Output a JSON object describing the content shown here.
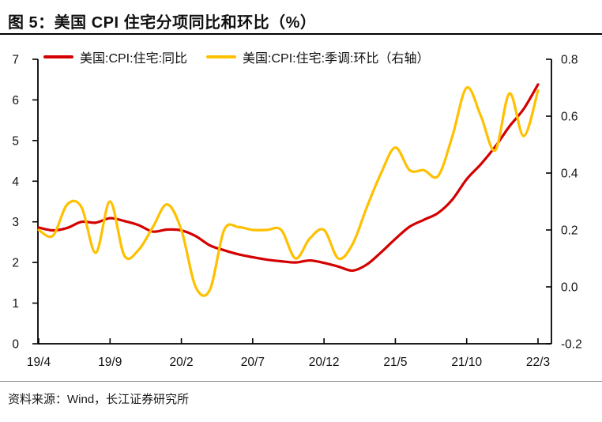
{
  "title": "图 5：美国 CPI 住宅分项同比和环比（%）",
  "source": "资料来源：Wind，长江证券研究所",
  "colors": {
    "yoy_line": "#d40000",
    "mom_line": "#ffc000",
    "axis": "#000000",
    "title_rule": "#000000",
    "footer_rule": "#8a8a8a"
  },
  "legend": [
    {
      "label": "美国:CPI:住宅:同比",
      "color": "#d40000"
    },
    {
      "label": "美国:CPI:住宅:季调:环比（右轴）",
      "color": "#ffc000"
    }
  ],
  "chart_data": {
    "type": "line",
    "title": "图 5：美国 CPI 住宅分项同比和环比（%）",
    "grid": false,
    "legend_position": "top",
    "x": [
      "19/4",
      "19/5",
      "19/6",
      "19/7",
      "19/8",
      "19/9",
      "19/10",
      "19/11",
      "19/12",
      "20/1",
      "20/2",
      "20/3",
      "20/4",
      "20/5",
      "20/6",
      "20/7",
      "20/8",
      "20/9",
      "20/10",
      "20/11",
      "20/12",
      "21/1",
      "21/2",
      "21/3",
      "21/4",
      "21/5",
      "21/6",
      "21/7",
      "21/8",
      "21/9",
      "21/10",
      "21/11",
      "21/12",
      "22/1",
      "22/2",
      "22/3"
    ],
    "x_axis": {
      "tick_indices": [
        0,
        5,
        10,
        15,
        20,
        25,
        30,
        35
      ],
      "tick_labels": [
        "19/4",
        "19/9",
        "20/2",
        "20/7",
        "20/12",
        "21/5",
        "21/10",
        "22/3"
      ]
    },
    "left_axis": {
      "min": 0,
      "max": 7,
      "tick_values": [
        7,
        6,
        5,
        4,
        3,
        2,
        1,
        0
      ],
      "tick_labels": [
        "7",
        "6",
        "5",
        "4",
        "3",
        "2",
        "1",
        "0"
      ]
    },
    "right_axis": {
      "min": -0.2,
      "max": 0.8,
      "tick_values": [
        0.8,
        0.6,
        0.4,
        0.2,
        0.0,
        -0.2
      ],
      "tick_labels": [
        "0.8",
        "0.6",
        "0.4",
        "0.2",
        "0.0",
        "-0.2"
      ]
    },
    "series": [
      {
        "name": "美国:CPI:住宅:同比",
        "axis": "left",
        "color": "#d40000",
        "values": [
          2.86,
          2.79,
          2.85,
          3.0,
          2.98,
          3.09,
          3.02,
          2.92,
          2.76,
          2.81,
          2.79,
          2.65,
          2.42,
          2.3,
          2.2,
          2.13,
          2.07,
          2.03,
          2.0,
          2.05,
          1.99,
          1.9,
          1.8,
          1.95,
          2.25,
          2.58,
          2.88,
          3.05,
          3.22,
          3.55,
          4.05,
          4.42,
          4.85,
          5.35,
          5.78,
          6.38
        ]
      },
      {
        "name": "美国:CPI:住宅:季调:环比（右轴）",
        "axis": "right",
        "color": "#ffc000",
        "values": [
          0.2,
          0.18,
          0.29,
          0.28,
          0.12,
          0.3,
          0.11,
          0.13,
          0.21,
          0.29,
          0.2,
          0.0,
          -0.01,
          0.2,
          0.21,
          0.2,
          0.2,
          0.2,
          0.1,
          0.17,
          0.2,
          0.1,
          0.15,
          0.28,
          0.4,
          0.49,
          0.41,
          0.41,
          0.39,
          0.53,
          0.7,
          0.6,
          0.48,
          0.68,
          0.53,
          0.69
        ]
      }
    ]
  }
}
